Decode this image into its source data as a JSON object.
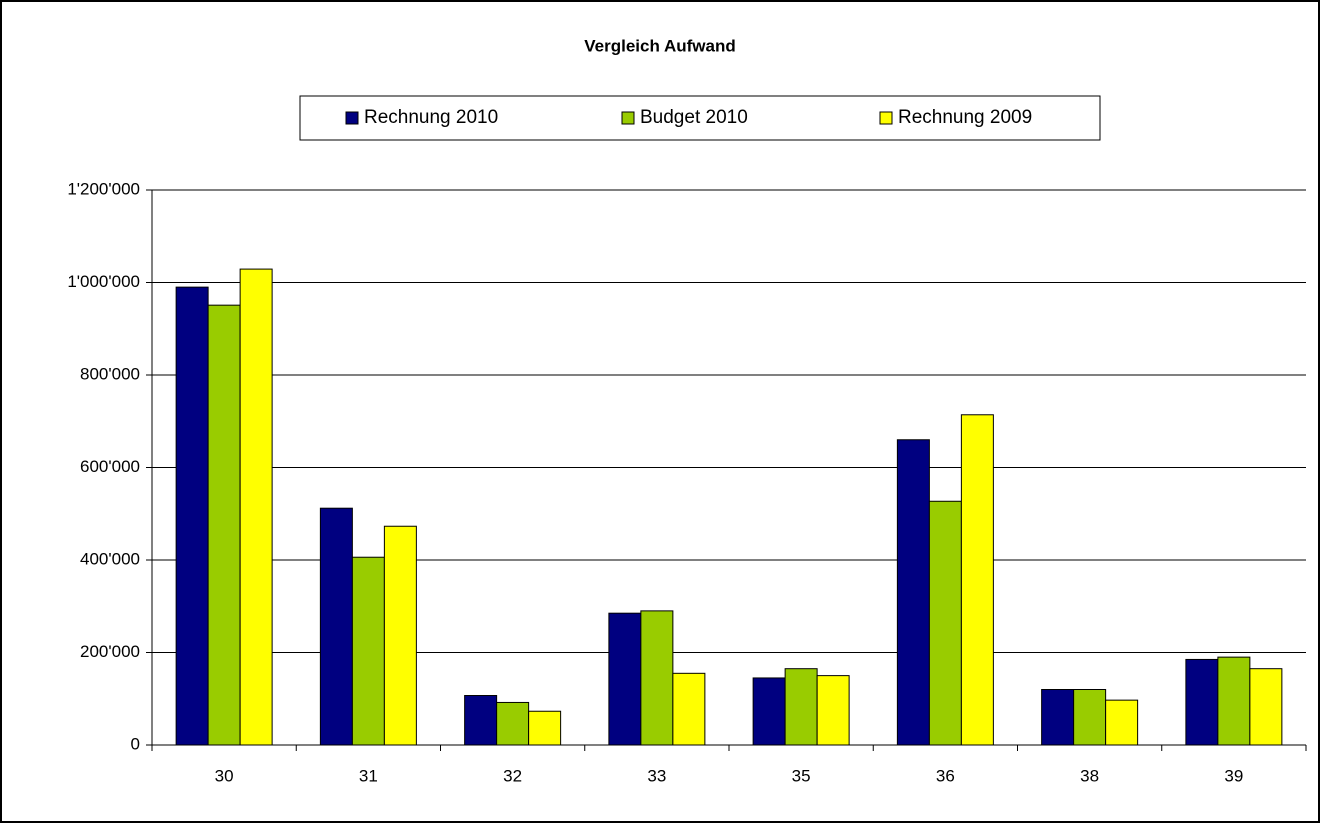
{
  "chart_data": {
    "type": "bar",
    "title": "Vergleich Aufwand",
    "categories": [
      "30",
      "31",
      "32",
      "33",
      "35",
      "36",
      "38",
      "39"
    ],
    "series": [
      {
        "name": "Rechnung 2010",
        "color": "#000080",
        "values": [
          990000,
          512000,
          107000,
          285000,
          145000,
          660000,
          120000,
          185000
        ]
      },
      {
        "name": "Budget 2010",
        "color": "#99cc00",
        "values": [
          951000,
          406000,
          92000,
          290000,
          165000,
          527000,
          120000,
          190000
        ]
      },
      {
        "name": "Rechnung 2009",
        "color": "#ffff00",
        "values": [
          1029000,
          473000,
          73000,
          155000,
          150000,
          714000,
          97000,
          165000
        ]
      }
    ],
    "ylim": [
      0,
      1200000
    ],
    "yticks": [
      0,
      {
        "value": 200000,
        "label": "200'000"
      },
      {
        "value": 400000,
        "label": "400'000"
      },
      {
        "value": 600000,
        "label": "600'000"
      },
      {
        "value": 800000,
        "label": "800'000"
      },
      {
        "value": 1000000,
        "label": "1'000'000"
      },
      {
        "value": 1200000,
        "label": "1'200'000"
      }
    ],
    "grid": true,
    "legend": "top"
  }
}
